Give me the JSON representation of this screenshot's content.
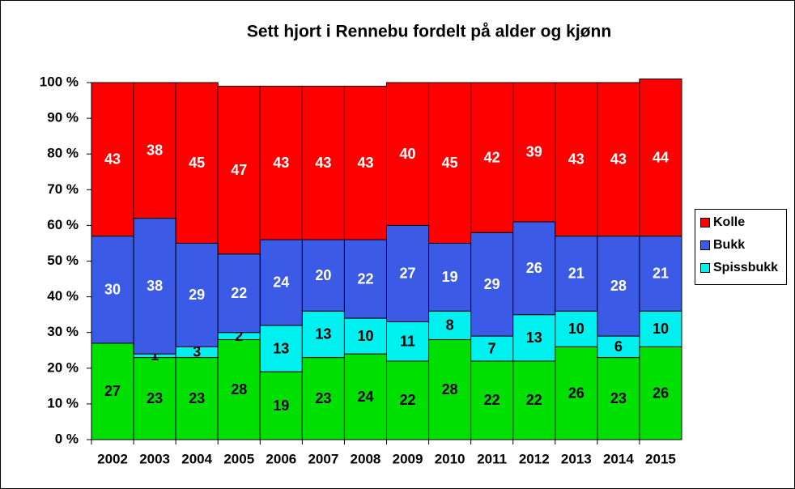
{
  "chart_data": {
    "type": "stacked_bar",
    "title": "Sett hjort i Rennebu fordelt på alder og kjønn",
    "categories": [
      "2002",
      "2003",
      "2004",
      "2005",
      "2006",
      "2007",
      "2008",
      "2009",
      "2010",
      "2011",
      "2012",
      "2013",
      "2014",
      "2015"
    ],
    "series": [
      {
        "color": "#00e000",
        "values": [
          27,
          23,
          23,
          28,
          19,
          23,
          24,
          22,
          28,
          22,
          22,
          26,
          23,
          26
        ]
      },
      {
        "name": "Spissbukk",
        "color": "#00f0f0",
        "values": [
          null,
          1,
          3,
          2,
          13,
          13,
          10,
          11,
          8,
          7,
          13,
          10,
          6,
          10
        ]
      },
      {
        "name": "Bukk",
        "color": "#3b5be6",
        "values": [
          30,
          38,
          29,
          22,
          24,
          20,
          22,
          27,
          19,
          29,
          26,
          21,
          28,
          21
        ]
      },
      {
        "name": "Kolle",
        "color": "#ff0000",
        "values": [
          43,
          38,
          45,
          47,
          43,
          43,
          43,
          40,
          45,
          42,
          39,
          43,
          43,
          44
        ]
      }
    ],
    "ylim": [
      0,
      100
    ],
    "yticks": [
      {
        "value": 0,
        "label": "0 %"
      },
      {
        "value": 10,
        "label": "10 %"
      },
      {
        "value": 20,
        "label": "20 %"
      },
      {
        "value": 30,
        "label": "30 %"
      },
      {
        "value": 40,
        "label": "40 %"
      },
      {
        "value": 50,
        "label": "50 %"
      },
      {
        "value": 60,
        "label": "60 %"
      },
      {
        "value": 70,
        "label": "70 %"
      },
      {
        "value": 80,
        "label": "80 %"
      },
      {
        "value": 90,
        "label": "90 %"
      },
      {
        "value": 100,
        "label": "100 %"
      }
    ],
    "label_colors": [
      "#000000",
      "#000000",
      "#ffffff",
      "#ffffff"
    ]
  }
}
